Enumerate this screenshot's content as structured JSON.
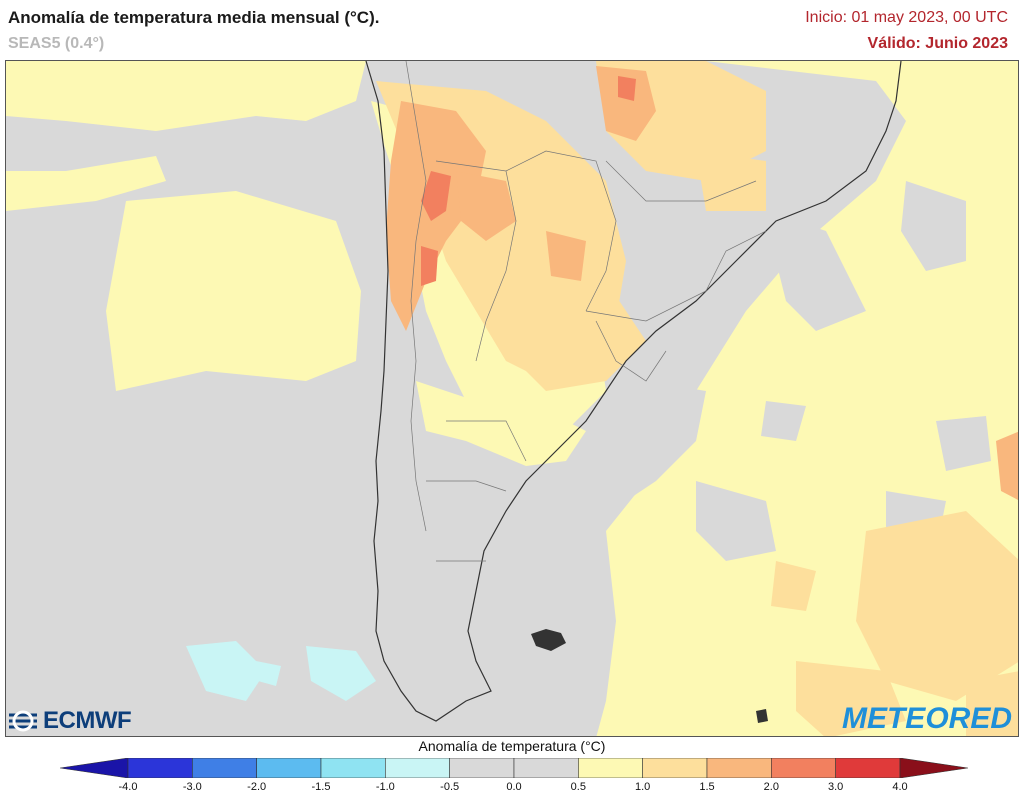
{
  "header": {
    "title": "Anomalía de temperatura media mensual (°C).",
    "subtitle": "SEAS5 (0.4°)",
    "init": "Inicio: 01 may 2023, 00 UTC",
    "valid": "Válido: Junio 2023"
  },
  "logos": {
    "left": "ECMWF",
    "right": "METEORED"
  },
  "legend": {
    "title": "Anomalía de temperatura (°C)",
    "ticks": [
      "-4.0",
      "-3.0",
      "-2.0",
      "-1.5",
      "-1.0",
      "-0.5",
      "0.0",
      "0.5",
      "1.0",
      "1.5",
      "2.0",
      "3.0",
      "4.0"
    ],
    "colors": [
      "#2b35d9",
      "#3f7fe6",
      "#5cbbf0",
      "#8fe3f2",
      "#c9f5f5",
      "#d9d9d9",
      "#d9d9d9",
      "#fdf9b4",
      "#fddf9c",
      "#f9b77d",
      "#f2805f",
      "#e03a3a"
    ],
    "low_end_color": "#1a14a8",
    "high_end_color": "#8a0f1a"
  }
}
